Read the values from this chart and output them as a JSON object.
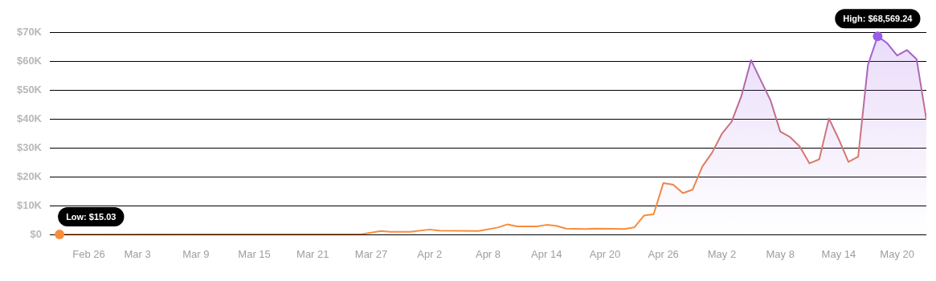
{
  "chart_data": {
    "type": "area",
    "x": [
      "--02-23",
      "--03-26",
      "--03-28",
      "--03-29",
      "--03-31",
      "--04-02",
      "--04-03",
      "--04-07",
      "--04-09",
      "--04-10",
      "--04-11",
      "--04-13",
      "--04-14",
      "--04-15",
      "--04-16",
      "--04-18",
      "--04-19",
      "--04-22",
      "--04-23",
      "--04-24",
      "--04-25",
      "--04-26",
      "--04-27",
      "--04-28",
      "--04-29",
      "--04-30",
      "--05-01",
      "--05-02",
      "--05-03",
      "--05-04",
      "--05-05",
      "--05-06",
      "--05-07",
      "--05-08",
      "--05-09",
      "--05-10",
      "--05-11",
      "--05-12",
      "--05-13",
      "--05-14",
      "--05-15",
      "--05-16",
      "--05-17",
      "--05-18",
      "--05-19",
      "--05-20",
      "--05-21",
      "--05-22",
      "--05-23"
    ],
    "series": [
      {
        "values": [
          15.03,
          100,
          1200,
          900,
          900,
          1700,
          1300,
          1200,
          2400,
          3500,
          2800,
          2800,
          3300,
          3000,
          2000,
          1900,
          2000,
          1900,
          2400,
          6500,
          7000,
          17800,
          17200,
          14300,
          15500,
          23500,
          28300,
          34800,
          39000,
          47800,
          60300,
          53300,
          46400,
          35600,
          33700,
          30400,
          24600,
          26000,
          40100,
          33000,
          25100,
          26900,
          58600,
          68569.24,
          66100,
          61900,
          63800,
          60600,
          39900
        ],
        "colors": [
          "#f98c3a",
          "#f98c3a",
          "#f98c3a",
          "#f98c3a",
          "#f98c3a",
          "#f98c3a",
          "#f98c3a",
          "#f98c3a",
          "#f98c3a",
          "#f98c3a",
          "#f98c3a",
          "#f98c3a",
          "#f98c3a",
          "#f98c3a",
          "#f98c3a",
          "#f98c3a",
          "#f98c3a",
          "#f98c3a",
          "#f98c3a",
          "#f98c3a",
          "#f98c3a",
          "#ef8548",
          "#ef8548",
          "#ef8548",
          "#ef8548",
          "#e27e5c",
          "#d87a6a",
          "#cc7578",
          "#c67284",
          "#b96a9c",
          "#a862c4",
          "#b06aae",
          "#b96a9c",
          "#cc7578",
          "#cc7578",
          "#d27778",
          "#d87a6a",
          "#d87a6a",
          "#c67284",
          "#cc7578",
          "#d87a6a",
          "#d87a6a",
          "#a862c4",
          "#9b5de5",
          "#9f5fdc",
          "#a862c4",
          "#a862c4",
          "#a862c4",
          "#c67284"
        ]
      }
    ],
    "xlim": [
      "--02-22",
      "--05-23"
    ],
    "xticks": [
      {
        "value": "--02-26",
        "label": "Feb 26"
      },
      {
        "value": "--03-03",
        "label": "Mar 3"
      },
      {
        "value": "--03-09",
        "label": "Mar 9"
      },
      {
        "value": "--03-15",
        "label": "Mar 15"
      },
      {
        "value": "--03-21",
        "label": "Mar 21"
      },
      {
        "value": "--03-27",
        "label": "Mar 27"
      },
      {
        "value": "--04-02",
        "label": "Apr 2"
      },
      {
        "value": "--04-08",
        "label": "Apr 8"
      },
      {
        "value": "--04-14",
        "label": "Apr 14"
      },
      {
        "value": "--04-20",
        "label": "Apr 20"
      },
      {
        "value": "--04-26",
        "label": "Apr 26"
      },
      {
        "value": "--05-02",
        "label": "May 2"
      },
      {
        "value": "--05-08",
        "label": "May 8"
      },
      {
        "value": "--05-14",
        "label": "May 14"
      },
      {
        "value": "--05-20",
        "label": "May 20"
      }
    ],
    "ylim": [
      0,
      70000
    ],
    "yticks": [
      {
        "value": 0,
        "label": "$0"
      },
      {
        "value": 10000,
        "label": "$10K"
      },
      {
        "value": 20000,
        "label": "$20K"
      },
      {
        "value": 30000,
        "label": "$30K"
      },
      {
        "value": 40000,
        "label": "$40K"
      },
      {
        "value": 50000,
        "label": "$50K"
      },
      {
        "value": 60000,
        "label": "$60K"
      },
      {
        "value": 70000,
        "label": "$70K"
      }
    ],
    "grid": "y",
    "legend": false,
    "marker": "none",
    "line_style": "solid",
    "annotations": [
      {
        "text": "High: $68,569.24",
        "x": "--05-18",
        "y": 68569.24
      },
      {
        "text": "Low: $15.03",
        "x": "--02-23",
        "y": 15.03
      }
    ]
  }
}
